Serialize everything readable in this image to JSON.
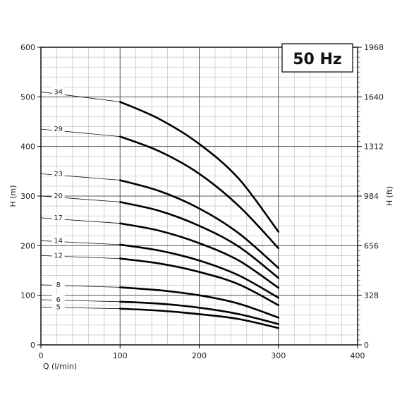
{
  "chart_data": {
    "type": "line",
    "title": "50 Hz",
    "xlabel": "Q (l/min)",
    "ylabel_left": "H (m)",
    "ylabel_right": "H (ft)",
    "xlim": [
      0,
      400
    ],
    "ylim": [
      0,
      600
    ],
    "x_ticks": [
      "0",
      "100",
      "200",
      "300",
      "400"
    ],
    "y_ticks_left": [
      "0",
      "100",
      "200",
      "300",
      "400",
      "500",
      "600"
    ],
    "y_ticks_right": [
      {
        "label": "0",
        "value": 0
      },
      {
        "label": "328",
        "value": 100
      },
      {
        "label": "656",
        "value": 200
      },
      {
        "label": "984",
        "value": 300
      },
      {
        "label": "1312",
        "value": 400
      },
      {
        "label": "1640",
        "value": 500
      },
      {
        "label": "1968",
        "value": 600
      }
    ],
    "grid": true,
    "series": [
      {
        "name": "34",
        "x": [
          0,
          100,
          150,
          200,
          250,
          300
        ],
        "y": [
          510,
          490,
          455,
          405,
          335,
          228
        ]
      },
      {
        "name": "29",
        "x": [
          0,
          100,
          150,
          200,
          250,
          300
        ],
        "y": [
          435,
          420,
          390,
          345,
          280,
          195
        ]
      },
      {
        "name": "23",
        "x": [
          0,
          100,
          150,
          200,
          250,
          300
        ],
        "y": [
          345,
          332,
          310,
          275,
          225,
          155
        ]
      },
      {
        "name": "20",
        "x": [
          0,
          100,
          150,
          200,
          250,
          300
        ],
        "y": [
          300,
          288,
          270,
          240,
          198,
          135
        ]
      },
      {
        "name": "17",
        "x": [
          0,
          100,
          150,
          200,
          250,
          300
        ],
        "y": [
          256,
          245,
          230,
          205,
          170,
          115
        ]
      },
      {
        "name": "14",
        "x": [
          0,
          100,
          150,
          200,
          250,
          300
        ],
        "y": [
          210,
          202,
          190,
          170,
          140,
          95
        ]
      },
      {
        "name": "12",
        "x": [
          0,
          100,
          150,
          200,
          250,
          300
        ],
        "y": [
          180,
          174,
          164,
          147,
          122,
          80
        ]
      },
      {
        "name": "8",
        "x": [
          0,
          100,
          150,
          200,
          250,
          300
        ],
        "y": [
          121,
          116,
          110,
          100,
          83,
          55
        ]
      },
      {
        "name": "6",
        "x": [
          0,
          100,
          150,
          200,
          250,
          300
        ],
        "y": [
          91,
          87,
          83,
          75,
          62,
          42
        ]
      },
      {
        "name": "5",
        "x": [
          0,
          100,
          150,
          200,
          250,
          300
        ],
        "y": [
          76,
          73,
          69,
          62,
          52,
          34
        ]
      }
    ]
  }
}
